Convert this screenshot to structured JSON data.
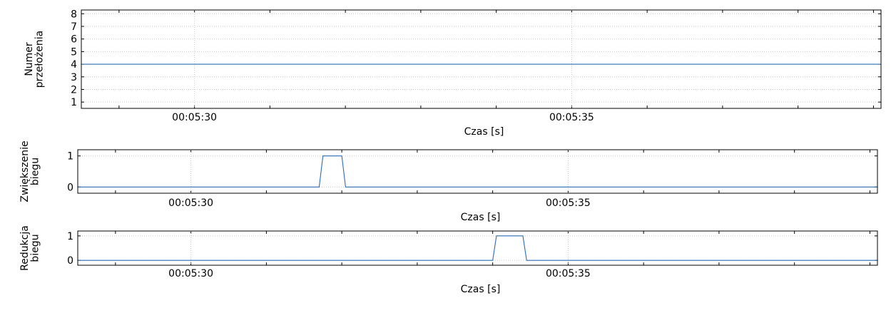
{
  "chart_data": [
    {
      "type": "line",
      "title": "",
      "ylabel": [
        "Numer",
        "przełożenia"
      ],
      "xlabel": "Czas [s]",
      "x_tick_labels": [
        {
          "t": 30,
          "label": "00:05:30"
        },
        {
          "t": 35,
          "label": "00:05:35"
        }
      ],
      "xlim": [
        28.5,
        39.1
      ],
      "ylim": [
        0.5,
        8.3
      ],
      "yticks": [
        1,
        2,
        3,
        4,
        5,
        6,
        7,
        8
      ],
      "grid": true,
      "series": [
        {
          "x": [
            28.5,
            39.1
          ],
          "y": [
            4,
            4
          ]
        }
      ]
    },
    {
      "type": "line",
      "title": "",
      "ylabel": [
        "Zwiększenie",
        "biegu"
      ],
      "xlabel": "Czas [s]",
      "x_tick_labels": [
        {
          "t": 30,
          "label": "00:05:30"
        },
        {
          "t": 35,
          "label": "00:05:35"
        }
      ],
      "xlim": [
        28.5,
        39.1
      ],
      "ylim": [
        -0.2,
        1.2
      ],
      "yticks": [
        0,
        1
      ],
      "grid": true,
      "series": [
        {
          "x": [
            28.5,
            31.7,
            31.75,
            32.0,
            32.05,
            39.1
          ],
          "y": [
            0,
            0,
            1,
            1,
            0,
            0
          ]
        }
      ]
    },
    {
      "type": "line",
      "title": "",
      "ylabel": [
        "Redukcja",
        "biegu"
      ],
      "xlabel": "Czas [s]",
      "x_tick_labels": [
        {
          "t": 30,
          "label": "00:05:30"
        },
        {
          "t": 35,
          "label": "00:05:35"
        }
      ],
      "xlim": [
        28.5,
        39.1
      ],
      "ylim": [
        -0.2,
        1.2
      ],
      "yticks": [
        0,
        1
      ],
      "grid": true,
      "series": [
        {
          "x": [
            28.5,
            34.0,
            34.05,
            34.4,
            34.45,
            39.1
          ],
          "y": [
            0,
            0,
            1,
            1,
            0,
            0
          ]
        }
      ]
    }
  ]
}
